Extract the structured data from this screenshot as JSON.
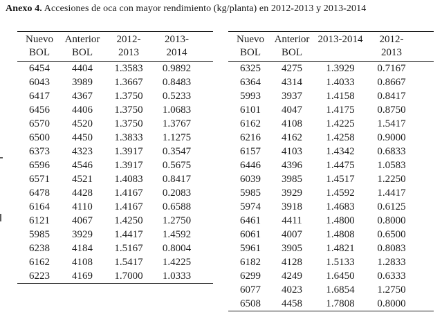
{
  "title": {
    "bold": "Anexo 4.",
    "rest": " Accesiones de oca con mayor rendimiento (kg/planta) en 2012-2013 y 2013-2014"
  },
  "colors": {
    "background": "#ffffff",
    "text": "#1c1c1c",
    "rule": "#1b1b1b"
  },
  "tables": [
    {
      "name": "left-table",
      "headers": [
        [
          "Nuevo",
          "BOL"
        ],
        [
          "Anterior",
          "BOL"
        ],
        [
          "2012-",
          "2013"
        ],
        [
          "2013-",
          "2014"
        ]
      ],
      "rows": [
        [
          "6454",
          "4404",
          "1.3583",
          "0.9892"
        ],
        [
          "6043",
          "3989",
          "1.3667",
          "0.8483"
        ],
        [
          "6417",
          "4367",
          "1.3750",
          "0.5233"
        ],
        [
          "6456",
          "4406",
          "1.3750",
          "1.0683"
        ],
        [
          "6570",
          "4520",
          "1.3750",
          "1.3767"
        ],
        [
          "6500",
          "4450",
          "1.3833",
          "1.1275"
        ],
        [
          "6373",
          "4323",
          "1.3917",
          "0.3547"
        ],
        [
          "6596",
          "4546",
          "1.3917",
          "0.5675"
        ],
        [
          "6571",
          "4521",
          "1.4083",
          "0.8417"
        ],
        [
          "6478",
          "4428",
          "1.4167",
          "0.2083"
        ],
        [
          "6164",
          "4110",
          "1.4167",
          "0.6588"
        ],
        [
          "6121",
          "4067",
          "1.4250",
          "1.2750"
        ],
        [
          "5985",
          "3929",
          "1.4417",
          "1.4592"
        ],
        [
          "6238",
          "4184",
          "1.5167",
          "0.8004"
        ],
        [
          "6162",
          "4108",
          "1.5417",
          "1.4225"
        ],
        [
          "6223",
          "4169",
          "1.7000",
          "1.0333"
        ]
      ]
    },
    {
      "name": "right-table",
      "headers": [
        [
          "Nuevo",
          "BOL"
        ],
        [
          "Anterior",
          "BOL"
        ],
        [
          "2013-2014",
          ""
        ],
        [
          "2012-",
          "2013"
        ]
      ],
      "rows": [
        [
          "6325",
          "4275",
          "1.3929",
          "0.7167"
        ],
        [
          "6364",
          "4314",
          "1.4033",
          "0.8667"
        ],
        [
          "5993",
          "3937",
          "1.4158",
          "0.8417"
        ],
        [
          "6101",
          "4047",
          "1.4175",
          "0.8750"
        ],
        [
          "6162",
          "4108",
          "1.4225",
          "1.5417"
        ],
        [
          "6216",
          "4162",
          "1.4258",
          "0.9000"
        ],
        [
          "6157",
          "4103",
          "1.4342",
          "0.6833"
        ],
        [
          "6446",
          "4396",
          "1.4475",
          "1.0583"
        ],
        [
          "6039",
          "3985",
          "1.4517",
          "1.2250"
        ],
        [
          "5985",
          "3929",
          "1.4592",
          "1.4417"
        ],
        [
          "5974",
          "3918",
          "1.4683",
          "0.6125"
        ],
        [
          "6461",
          "4411",
          "1.4800",
          "0.8000"
        ],
        [
          "6061",
          "4007",
          "1.4808",
          "0.6500"
        ],
        [
          "5961",
          "3905",
          "1.4821",
          "0.8083"
        ],
        [
          "6182",
          "4128",
          "1.5133",
          "1.2833"
        ],
        [
          "6299",
          "4249",
          "1.6450",
          "0.6333"
        ],
        [
          "6077",
          "4023",
          "1.6854",
          "1.2750"
        ],
        [
          "6508",
          "4458",
          "1.7808",
          "0.8000"
        ]
      ]
    }
  ]
}
